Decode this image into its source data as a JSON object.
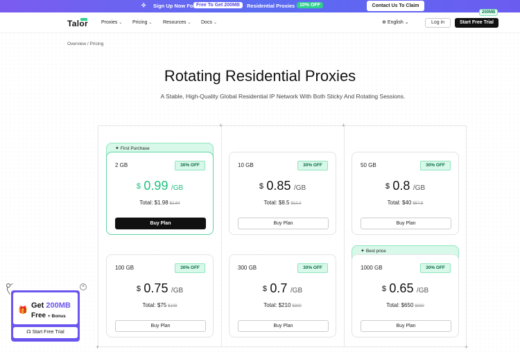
{
  "promo": {
    "text1": "Sign Up Now For",
    "pill1": "Free To Get 200MB",
    "text2": "Residential Proxies +",
    "pill2": "10% OFF",
    "claim": "Contact Us To Claim",
    "badge": "200MB"
  },
  "header": {
    "logo": "Talor",
    "nav": [
      "Proxies",
      "Pricing",
      "Resources",
      "Docs"
    ],
    "language": "English",
    "login": "Log in",
    "trial": "Start Free Trial"
  },
  "breadcrumb": "Overview  /  Pricing",
  "title": "Rotating Residential Proxies",
  "subtitle": "A Stable, High-Quality Global Residential IP Network With Both Sticky And Rotating Sessions.",
  "plans": [
    {
      "size": "2 GB",
      "off": "30% OFF",
      "currency": "$",
      "price": "0.99",
      "unit": "/GB",
      "total": "Total: $1.98",
      "old": "$2.84",
      "button": "Buy Plan",
      "ribbon": "First Purchase"
    },
    {
      "size": "10 GB",
      "off": "30% OFF",
      "currency": "$",
      "price": "0.85",
      "unit": "/GB",
      "total": "Total: $8.5",
      "old": "$12.2",
      "button": "Buy Plan"
    },
    {
      "size": "50 GB",
      "off": "30% OFF",
      "currency": "$",
      "price": "0.8",
      "unit": "/GB",
      "total": "Total: $40",
      "old": "$57.5",
      "button": "Buy Plan"
    },
    {
      "size": "100 GB",
      "off": "30% OFF",
      "currency": "$",
      "price": "0.75",
      "unit": "/GB",
      "total": "Total: $75",
      "old": "$108",
      "button": "Buy Plan"
    },
    {
      "size": "300 GB",
      "off": "30% OFF",
      "currency": "$",
      "price": "0.7",
      "unit": "/GB",
      "total": "Total: $210",
      "old": "$300",
      "button": "Buy Plan"
    },
    {
      "size": "1000 GB",
      "off": "30% OFF",
      "currency": "$",
      "price": "0.65",
      "unit": "/GB",
      "total": "Total: $650",
      "old": "$930",
      "button": "Buy Plan",
      "ribbon": "Best price"
    }
  ],
  "widget": {
    "line1a": "Get",
    "line1b": "200MB",
    "line2a": "Free",
    "line2b": "+ Bonus",
    "button": "Start Free Trial"
  },
  "colors": {
    "accent": "#6a55ee",
    "green": "#1fbf7f",
    "dark": "#111111"
  }
}
